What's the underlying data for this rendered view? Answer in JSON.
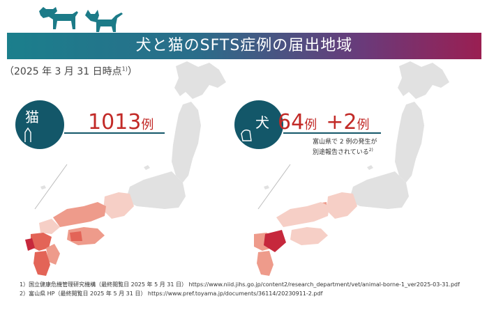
{
  "title": "犬と猫のSFTS症例の届出地域",
  "date_prefix": "（2025 年 3 月 31 日時点",
  "date_note_mark": "1)",
  "date_suffix": "）",
  "cat": {
    "label": "猫",
    "count": "1013",
    "unit": "例"
  },
  "dog": {
    "label": "犬",
    "count": "64",
    "unit": "例",
    "extra_prefix": "+2",
    "extra_unit": "例",
    "note_line1": "富山県で 2 例の発生が",
    "note_line2": "別途報告されている",
    "note_mark": "2)"
  },
  "references": [
    "1）国立健康危機管理研究機構（最終閲覧日 2025 年 5 月 31 日） https://www.niid.jihs.go.jp/content2/research_department/vet/animal-borne-1_ver2025-03-31.pdf",
    "2）富山県 HP（最終閲覧日 2025 年 5 月 31 日） https://www.pref.toyama.jp/documents/36114/20230911-2.pdf"
  ],
  "colors": {
    "banner_start": "#1b7f8c",
    "banner_end": "#9a1f52",
    "badge": "#135769",
    "count_red": "#c22a27",
    "map_base": "#e1e1e1",
    "heat_light": "#f6cfc6",
    "heat_mid": "#ee9b8b",
    "heat_high": "#e36457",
    "heat_max": "#c6283c"
  }
}
